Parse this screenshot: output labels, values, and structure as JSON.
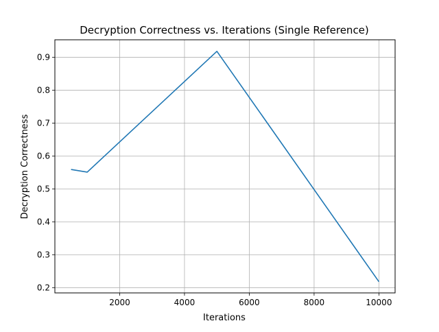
{
  "chart_data": {
    "type": "line",
    "title": "Decryption Correctness vs. Iterations (Single Reference)",
    "xlabel": "Iterations",
    "ylabel": "Decryption Correctness",
    "xlim": [
      0,
      10500
    ],
    "ylim": [
      0.184,
      0.953
    ],
    "xticks": [
      2000,
      4000,
      6000,
      8000,
      10000
    ],
    "xtick_labels": [
      "2000",
      "4000",
      "6000",
      "8000",
      "10000"
    ],
    "yticks": [
      0.2,
      0.3,
      0.4,
      0.5,
      0.6,
      0.7,
      0.8,
      0.9
    ],
    "ytick_labels": [
      "0.2",
      "0.3",
      "0.4",
      "0.5",
      "0.6",
      "0.7",
      "0.8",
      "0.9"
    ],
    "grid": true,
    "series": [
      {
        "x": [
          500,
          1000,
          5000,
          10000
        ],
        "values": [
          0.559,
          0.551,
          0.918,
          0.218
        ]
      }
    ],
    "colors": {
      "line": "#1f77b4",
      "grid": "#b0b0b0",
      "axes": "#000000"
    }
  }
}
